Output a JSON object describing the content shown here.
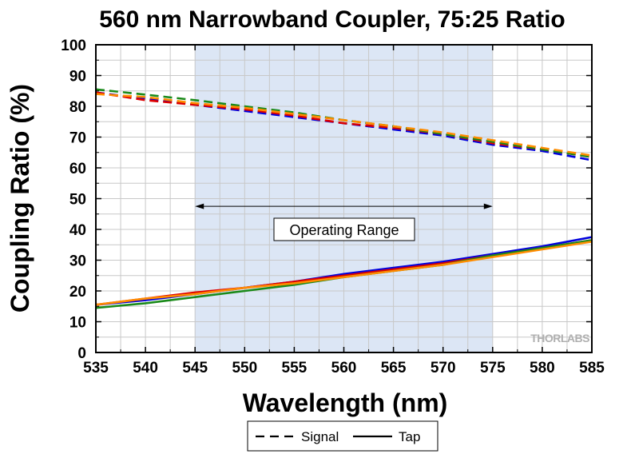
{
  "chart_data": {
    "type": "line",
    "title": "560 nm Narrowband Coupler, 75:25 Ratio",
    "xlabel": "Wavelength (nm)",
    "ylabel": "Coupling Ratio (%)",
    "xlim": [
      535,
      585
    ],
    "ylim": [
      0,
      100
    ],
    "x_ticks": [
      535,
      540,
      545,
      550,
      555,
      560,
      565,
      570,
      575,
      580,
      585
    ],
    "y_ticks": [
      0,
      10,
      20,
      30,
      40,
      50,
      60,
      70,
      80,
      90,
      100
    ],
    "grid": true,
    "shaded_region": {
      "x": [
        545,
        575
      ],
      "color": "#dce6f5"
    },
    "annotation": {
      "text": "Operating Range",
      "x": [
        545,
        575
      ],
      "y": 47.5
    },
    "watermark": {
      "text": "THORLABS"
    },
    "legend": {
      "placement": "bottom-center",
      "entries": [
        {
          "label": "Signal",
          "style": "dashed"
        },
        {
          "label": "Tap",
          "style": "solid"
        }
      ]
    },
    "x": [
      535,
      540,
      545,
      550,
      555,
      560,
      565,
      570,
      575,
      580,
      585
    ],
    "series": [
      {
        "color": "#0000dd",
        "style": "dashed",
        "values": [
          84.5,
          82.5,
          80.5,
          78.5,
          76.5,
          74.5,
          72.5,
          70.5,
          67.5,
          65.5,
          62.5
        ]
      },
      {
        "color": "#dd0000",
        "style": "dashed",
        "values": [
          84.5,
          82.0,
          80.5,
          79.0,
          77.0,
          74.5,
          73.0,
          71.0,
          68.0,
          66.0,
          63.5
        ]
      },
      {
        "color": "#1a8a1a",
        "style": "dashed",
        "values": [
          85.5,
          83.8,
          82.0,
          80.0,
          78.0,
          75.5,
          73.5,
          71.0,
          68.5,
          66.0,
          63.5
        ]
      },
      {
        "color": "#ff8c00",
        "style": "dashed",
        "values": [
          84.0,
          83.0,
          81.0,
          79.5,
          77.5,
          75.5,
          73.5,
          71.5,
          69.0,
          66.5,
          64.0
        ]
      },
      {
        "color": "#0000dd",
        "style": "solid",
        "values": [
          15.5,
          17.0,
          19.0,
          21.0,
          23.0,
          25.5,
          27.5,
          29.5,
          32.0,
          34.5,
          37.5
        ]
      },
      {
        "color": "#dd0000",
        "style": "solid",
        "values": [
          15.5,
          17.5,
          19.5,
          21.0,
          23.0,
          25.0,
          27.0,
          29.0,
          31.5,
          34.0,
          36.5
        ]
      },
      {
        "color": "#1a8a1a",
        "style": "solid",
        "values": [
          14.5,
          16.0,
          18.0,
          20.0,
          22.0,
          24.5,
          26.5,
          28.5,
          31.5,
          34.0,
          36.5
        ]
      },
      {
        "color": "#ff8c00",
        "style": "solid",
        "values": [
          15.5,
          17.5,
          19.0,
          21.0,
          22.5,
          24.5,
          26.5,
          28.5,
          31.0,
          33.5,
          36.0
        ]
      }
    ]
  }
}
